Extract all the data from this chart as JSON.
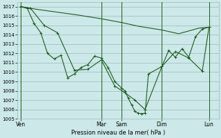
{
  "background_color": "#cce8e8",
  "grid_color": "#99bbbb",
  "line_color": "#1a5c1a",
  "marker_color": "#1a5c1a",
  "xlabel": "Pression niveau de la mer( hPa )",
  "ylim": [
    1005,
    1017.5
  ],
  "yticks": [
    1005,
    1006,
    1007,
    1008,
    1009,
    1010,
    1011,
    1012,
    1013,
    1014,
    1015,
    1016,
    1017
  ],
  "xlim": [
    0,
    30
  ],
  "day_labels": [
    "Ven",
    "Mar",
    "Sam",
    "Dim",
    "Lun"
  ],
  "day_positions": [
    0.5,
    12.5,
    15.5,
    21.5,
    28.5
  ],
  "vline_positions": [
    0.5,
    12.5,
    15.5,
    21.5,
    28.5
  ],
  "series1_x": [
    0.5,
    3,
    6,
    9,
    12.5,
    15.5,
    18,
    21.5,
    24,
    27,
    28.5
  ],
  "series1_y": [
    1017.0,
    1016.7,
    1016.4,
    1016.1,
    1015.7,
    1015.3,
    1014.9,
    1014.5,
    1014.1,
    1014.7,
    1014.8
  ],
  "series2_x": [
    0.5,
    1.5,
    2.5,
    3.5,
    4.5,
    5.5,
    6.5,
    7.5,
    8.5,
    9.5,
    10.5,
    11.5,
    12.5,
    13.5,
    14.5,
    15.5,
    16.0,
    16.5,
    17.0,
    17.5,
    18.0,
    18.5,
    19.0,
    19.5,
    21.5,
    22.5,
    23.5,
    24.5,
    25.5,
    26.5,
    27.5,
    28.5
  ],
  "series2_y": [
    1017.0,
    1016.8,
    1015.2,
    1014.2,
    1012.0,
    1011.4,
    1011.8,
    1009.4,
    1009.8,
    1010.5,
    1010.8,
    1011.7,
    1011.5,
    1010.5,
    1009.0,
    1008.3,
    1008.0,
    1007.2,
    1006.5,
    1005.8,
    1005.6,
    1005.55,
    1005.6,
    1009.8,
    1010.6,
    1012.3,
    1011.6,
    1012.5,
    1011.6,
    1013.8,
    1014.6,
    1014.8
  ],
  "series3_x": [
    0.5,
    2.0,
    4.0,
    6.0,
    8.5,
    10.5,
    12.5,
    14.5,
    16.0,
    17.5,
    19.0,
    21.5,
    23.5,
    25.5,
    27.5,
    28.5
  ],
  "series3_y": [
    1017.0,
    1016.8,
    1015.0,
    1014.2,
    1010.2,
    1010.3,
    1011.3,
    1008.5,
    1007.8,
    1007.0,
    1006.0,
    1010.6,
    1012.2,
    1011.5,
    1010.1,
    1014.8
  ]
}
